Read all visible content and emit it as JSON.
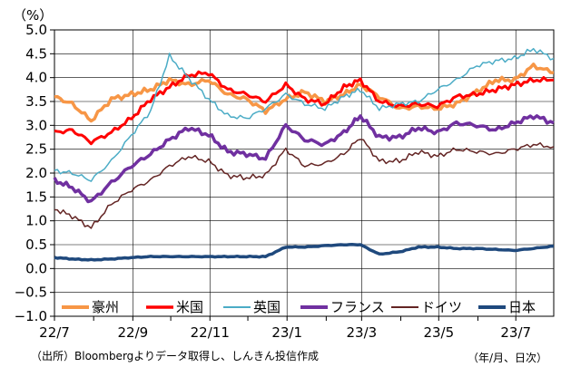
{
  "chart_data": {
    "type": "line",
    "y_unit": "（%）",
    "ylim": [
      -1.0,
      5.0
    ],
    "y_ticks": [
      "5.0",
      "4.5",
      "4.0",
      "3.5",
      "3.0",
      "2.5",
      "2.0",
      "1.5",
      "1.0",
      "0.5",
      "0.0",
      "−0.5",
      "−1.0"
    ],
    "x_ticks": [
      "22/7",
      "22/9",
      "22/11",
      "23/1",
      "23/3",
      "23/5",
      "23/7"
    ],
    "x_axis_note": "（年/月、日次）",
    "source_note": "（出所）Bloombergよりデータ取得し、しんきん投信作成",
    "grid": true,
    "legend_position": "bottom-inside",
    "x": [
      "2022-07-01",
      "2022-07-15",
      "2022-07-30",
      "2022-08-15",
      "2022-08-31",
      "2022-09-15",
      "2022-09-30",
      "2022-10-15",
      "2022-10-31",
      "2022-11-15",
      "2022-11-30",
      "2022-12-15",
      "2022-12-31",
      "2023-01-15",
      "2023-01-31",
      "2023-02-15",
      "2023-02-28",
      "2023-03-15",
      "2023-03-31",
      "2023-04-15",
      "2023-04-30",
      "2023-05-15",
      "2023-05-31",
      "2023-06-15",
      "2023-06-30",
      "2023-07-15",
      "2023-07-31"
    ],
    "series": [
      {
        "name": "豪州",
        "color": "#F79646",
        "width": 3.5,
        "values": [
          3.6,
          3.45,
          3.1,
          3.55,
          3.65,
          3.75,
          3.95,
          3.85,
          3.95,
          3.65,
          3.55,
          3.3,
          3.55,
          3.7,
          3.5,
          3.65,
          3.85,
          3.6,
          3.35,
          3.4,
          3.35,
          3.45,
          3.7,
          3.95,
          3.95,
          4.25,
          4.1
        ]
      },
      {
        "name": "米国",
        "color": "#FF0000",
        "width": 3,
        "values": [
          2.85,
          2.9,
          2.65,
          2.85,
          3.15,
          3.55,
          3.8,
          4.05,
          4.1,
          3.75,
          3.65,
          3.5,
          3.85,
          3.55,
          3.45,
          3.8,
          3.95,
          3.5,
          3.4,
          3.45,
          3.4,
          3.6,
          3.65,
          3.75,
          3.85,
          3.95,
          3.95
        ]
      },
      {
        "name": "英国",
        "color": "#4BACC6",
        "width": 1.5,
        "values": [
          2.05,
          2.0,
          1.85,
          2.25,
          2.8,
          3.3,
          4.45,
          4.0,
          3.55,
          3.2,
          3.15,
          3.35,
          3.65,
          3.45,
          3.35,
          3.6,
          3.75,
          3.35,
          3.45,
          3.5,
          3.75,
          3.95,
          4.25,
          4.35,
          4.4,
          4.6,
          4.4
        ]
      },
      {
        "name": "フランス",
        "color": "#7030A0",
        "width": 3.5,
        "values": [
          1.85,
          1.7,
          1.4,
          1.8,
          2.15,
          2.4,
          2.7,
          2.95,
          2.8,
          2.45,
          2.4,
          2.3,
          3.0,
          2.7,
          2.6,
          2.85,
          3.2,
          2.75,
          2.75,
          2.95,
          2.85,
          3.05,
          3.0,
          2.9,
          3.05,
          3.2,
          3.05
        ]
      },
      {
        "name": "ドイツ",
        "color": "#632423",
        "width": 1.5,
        "values": [
          1.25,
          1.1,
          0.85,
          1.35,
          1.65,
          1.85,
          2.15,
          2.35,
          2.25,
          1.95,
          1.9,
          1.95,
          2.5,
          2.15,
          2.2,
          2.4,
          2.75,
          2.25,
          2.25,
          2.45,
          2.35,
          2.5,
          2.45,
          2.4,
          2.5,
          2.6,
          2.55
        ]
      },
      {
        "name": "日本",
        "color": "#1F497D",
        "width": 3.5,
        "values": [
          0.23,
          0.2,
          0.18,
          0.2,
          0.23,
          0.25,
          0.25,
          0.25,
          0.25,
          0.25,
          0.25,
          0.25,
          0.45,
          0.45,
          0.48,
          0.5,
          0.5,
          0.3,
          0.35,
          0.45,
          0.45,
          0.42,
          0.42,
          0.4,
          0.38,
          0.42,
          0.47
        ]
      }
    ]
  }
}
